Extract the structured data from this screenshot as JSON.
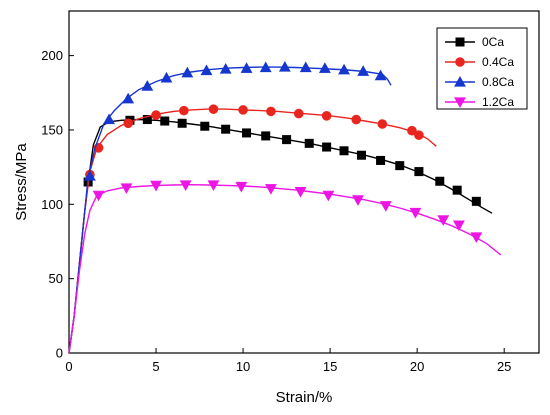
{
  "chart_data": {
    "type": "line",
    "title": "",
    "xlabel": "Strain/%",
    "ylabel": "Stress/MPa",
    "xlim": [
      0,
      27
    ],
    "ylim": [
      0,
      230
    ],
    "xticks": [
      0,
      5,
      10,
      15,
      20,
      25
    ],
    "yticks": [
      0,
      50,
      100,
      150,
      200
    ],
    "grid": false,
    "legend_position": "top-right",
    "series": [
      {
        "name": "0Ca",
        "color": "#000000",
        "marker": "square",
        "points": [
          [
            0,
            0
          ],
          [
            0.3,
            25
          ],
          [
            0.6,
            60
          ],
          [
            0.9,
            95
          ],
          [
            1.1,
            115
          ],
          [
            1.4,
            140
          ],
          [
            1.8,
            152
          ],
          [
            2.3,
            155.5
          ],
          [
            3,
            156.5
          ],
          [
            4,
            157
          ],
          [
            5,
            156.5
          ],
          [
            6,
            155.5
          ],
          [
            7,
            154
          ],
          [
            8,
            152.5
          ],
          [
            9,
            150.5
          ],
          [
            10,
            148.5
          ],
          [
            11,
            146.5
          ],
          [
            12,
            144.5
          ],
          [
            13,
            142.5
          ],
          [
            14,
            140.5
          ],
          [
            15,
            138
          ],
          [
            16,
            135.5
          ],
          [
            17,
            133
          ],
          [
            18,
            130
          ],
          [
            19,
            126.5
          ],
          [
            20,
            122
          ],
          [
            21,
            116.5
          ],
          [
            22,
            110
          ],
          [
            23,
            103
          ],
          [
            23.7,
            98
          ],
          [
            24.3,
            94
          ]
        ],
        "marker_points": [
          [
            1.1,
            115
          ],
          [
            3.5,
            156.5
          ],
          [
            4.5,
            157
          ],
          [
            5.5,
            156
          ],
          [
            6.5,
            154.5
          ],
          [
            7.8,
            152.5
          ],
          [
            9,
            150.5
          ],
          [
            10.2,
            148
          ],
          [
            11.3,
            146
          ],
          [
            12.5,
            143.5
          ],
          [
            13.8,
            141
          ],
          [
            14.8,
            138.5
          ],
          [
            15.8,
            136
          ],
          [
            16.8,
            133
          ],
          [
            17.9,
            129.5
          ],
          [
            19,
            126
          ],
          [
            20.1,
            122
          ],
          [
            21.3,
            115.5
          ],
          [
            22.3,
            109.5
          ],
          [
            23.4,
            102
          ]
        ]
      },
      {
        "name": "0.4Ca",
        "color": "#e8251f",
        "marker": "circle",
        "points": [
          [
            0,
            0
          ],
          [
            0.3,
            25
          ],
          [
            0.6,
            60
          ],
          [
            0.9,
            95
          ],
          [
            1.2,
            122
          ],
          [
            1.6,
            138
          ],
          [
            2.2,
            147
          ],
          [
            3,
            153
          ],
          [
            4,
            157.5
          ],
          [
            5,
            160.5
          ],
          [
            6,
            162.5
          ],
          [
            7,
            163.5
          ],
          [
            8,
            164
          ],
          [
            9,
            164
          ],
          [
            10,
            163.5
          ],
          [
            11,
            163
          ],
          [
            12,
            162.5
          ],
          [
            13,
            161.5
          ],
          [
            14,
            160.5
          ],
          [
            15,
            159.5
          ],
          [
            16,
            158
          ],
          [
            17,
            156
          ],
          [
            18,
            154
          ],
          [
            19,
            151.5
          ],
          [
            20,
            148
          ],
          [
            20.6,
            144
          ],
          [
            21.1,
            139
          ]
        ],
        "marker_points": [
          [
            1.2,
            120
          ],
          [
            1.7,
            138
          ],
          [
            3.4,
            154.5
          ],
          [
            5,
            160
          ],
          [
            6.6,
            163
          ],
          [
            8.3,
            164
          ],
          [
            10,
            163.5
          ],
          [
            11.6,
            162.5
          ],
          [
            13.2,
            161
          ],
          [
            14.8,
            159.5
          ],
          [
            16.5,
            157
          ],
          [
            18,
            154
          ],
          [
            19.7,
            149.5
          ],
          [
            20.1,
            146.5
          ]
        ]
      },
      {
        "name": "0.8Ca",
        "color": "#1536cf",
        "marker": "triangle-up",
        "points": [
          [
            0,
            0
          ],
          [
            0.3,
            25
          ],
          [
            0.6,
            60
          ],
          [
            0.9,
            95
          ],
          [
            1.1,
            118
          ],
          [
            1.5,
            138
          ],
          [
            2,
            154
          ],
          [
            2.6,
            163
          ],
          [
            3.3,
            171
          ],
          [
            4,
            177
          ],
          [
            5,
            182.5
          ],
          [
            6,
            186.5
          ],
          [
            7,
            189
          ],
          [
            8,
            190.5
          ],
          [
            9,
            191.5
          ],
          [
            10,
            192
          ],
          [
            11,
            192.3
          ],
          [
            12,
            192.3
          ],
          [
            13,
            192
          ],
          [
            14,
            191.5
          ],
          [
            15,
            191
          ],
          [
            16,
            190.3
          ],
          [
            17,
            189.3
          ],
          [
            18,
            187.5
          ],
          [
            18.3,
            184
          ],
          [
            18.5,
            180
          ]
        ],
        "marker_points": [
          [
            1.2,
            119
          ],
          [
            2.3,
            157
          ],
          [
            3.4,
            171
          ],
          [
            4.5,
            179.5
          ],
          [
            5.6,
            185
          ],
          [
            6.8,
            188.5
          ],
          [
            7.9,
            190
          ],
          [
            9,
            191
          ],
          [
            10.2,
            191.5
          ],
          [
            11.3,
            192
          ],
          [
            12.4,
            192.3
          ],
          [
            13.6,
            192
          ],
          [
            14.7,
            191.5
          ],
          [
            15.8,
            190.5
          ],
          [
            16.9,
            189.5
          ],
          [
            17.9,
            186.5
          ]
        ]
      },
      {
        "name": "1.2Ca",
        "color": "#ec15e4",
        "marker": "triangle-down",
        "points": [
          [
            0,
            0
          ],
          [
            0.3,
            25
          ],
          [
            0.6,
            55
          ],
          [
            0.9,
            80
          ],
          [
            1.2,
            96
          ],
          [
            1.6,
            106
          ],
          [
            2.2,
            109
          ],
          [
            3,
            111
          ],
          [
            4,
            112
          ],
          [
            5,
            112.7
          ],
          [
            6,
            113
          ],
          [
            7,
            113.2
          ],
          [
            8,
            113
          ],
          [
            9,
            112.7
          ],
          [
            10,
            112.3
          ],
          [
            11,
            111.7
          ],
          [
            12,
            110.7
          ],
          [
            13,
            109.7
          ],
          [
            14,
            108.3
          ],
          [
            15,
            106.8
          ],
          [
            16,
            105
          ],
          [
            17,
            103
          ],
          [
            18,
            100.5
          ],
          [
            19,
            97.5
          ],
          [
            20,
            94
          ],
          [
            21,
            90
          ],
          [
            22,
            85.5
          ],
          [
            23,
            80
          ],
          [
            24,
            73.5
          ],
          [
            24.8,
            66
          ]
        ],
        "marker_points": [
          [
            1.7,
            106
          ],
          [
            3.3,
            111
          ],
          [
            5,
            112.7
          ],
          [
            6.7,
            113
          ],
          [
            8.3,
            113
          ],
          [
            9.9,
            112
          ],
          [
            11.6,
            110.5
          ],
          [
            13.3,
            108.5
          ],
          [
            14.9,
            106
          ],
          [
            16.6,
            103
          ],
          [
            18.2,
            99
          ],
          [
            19.9,
            94.5
          ],
          [
            21.5,
            89.5
          ],
          [
            22.4,
            86
          ],
          [
            23.4,
            78
          ]
        ]
      }
    ]
  }
}
